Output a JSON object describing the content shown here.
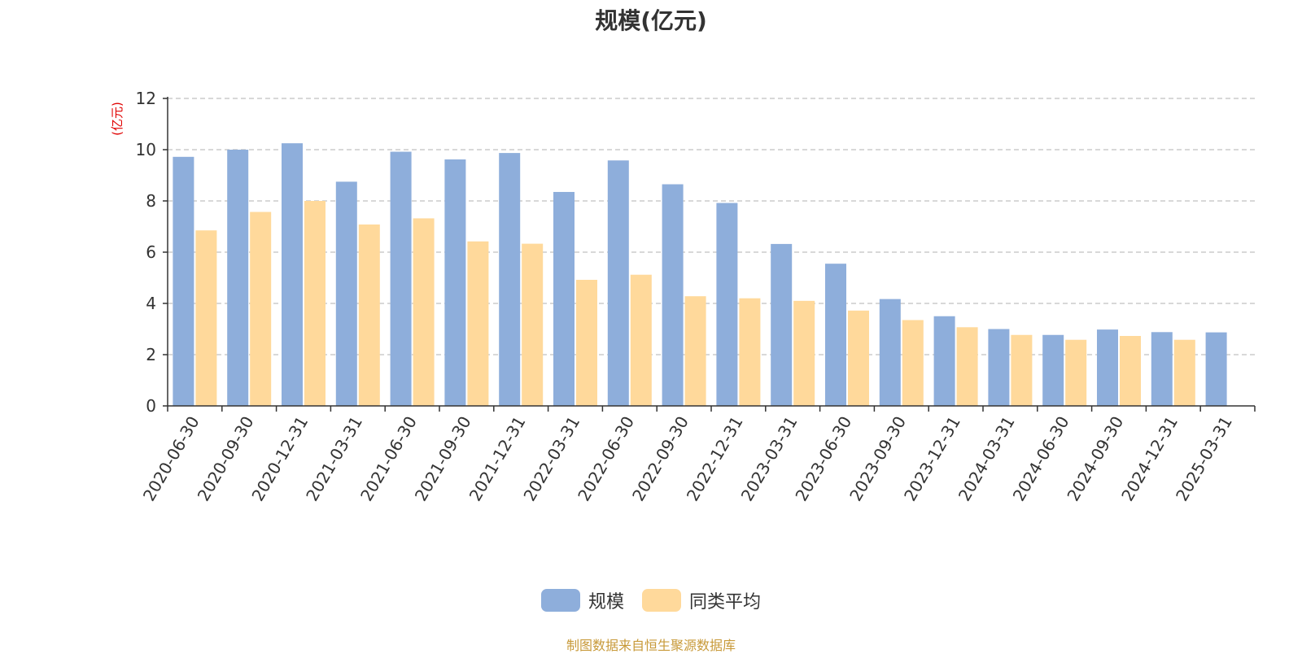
{
  "chart_data": {
    "type": "bar",
    "title": "规模(亿元)",
    "ylabel": "(亿元)",
    "xlabel": "",
    "ylim": [
      0,
      12
    ],
    "yticks": [
      "0",
      "2",
      "4",
      "6",
      "8",
      "10",
      "12"
    ],
    "grid": true,
    "legend_position": "bottom",
    "categories": [
      "2020-06-30",
      "2020-09-30",
      "2020-12-31",
      "2021-03-31",
      "2021-06-30",
      "2021-09-30",
      "2021-12-31",
      "2022-03-31",
      "2022-06-30",
      "2022-09-30",
      "2022-12-31",
      "2023-03-31",
      "2023-06-30",
      "2023-09-30",
      "2023-12-31",
      "2024-03-31",
      "2024-06-30",
      "2024-09-30",
      "2024-12-31",
      "2025-03-31"
    ],
    "series": [
      {
        "name": "规模",
        "color": "#8eaedb",
        "values": [
          9.72,
          10.0,
          10.25,
          8.75,
          9.92,
          9.62,
          9.87,
          8.35,
          9.58,
          8.65,
          7.92,
          6.32,
          5.55,
          4.17,
          3.5,
          3.0,
          2.77,
          2.98,
          2.88,
          2.87
        ]
      },
      {
        "name": "同类平均",
        "color": "#ffd99b",
        "values": [
          6.85,
          7.57,
          8.0,
          7.08,
          7.32,
          6.42,
          6.33,
          4.92,
          5.12,
          4.28,
          4.2,
          4.1,
          3.72,
          3.35,
          3.07,
          2.77,
          2.58,
          2.73,
          2.58,
          null
        ]
      }
    ]
  },
  "footer": {
    "source": "制图数据来自恒生聚源数据库"
  }
}
